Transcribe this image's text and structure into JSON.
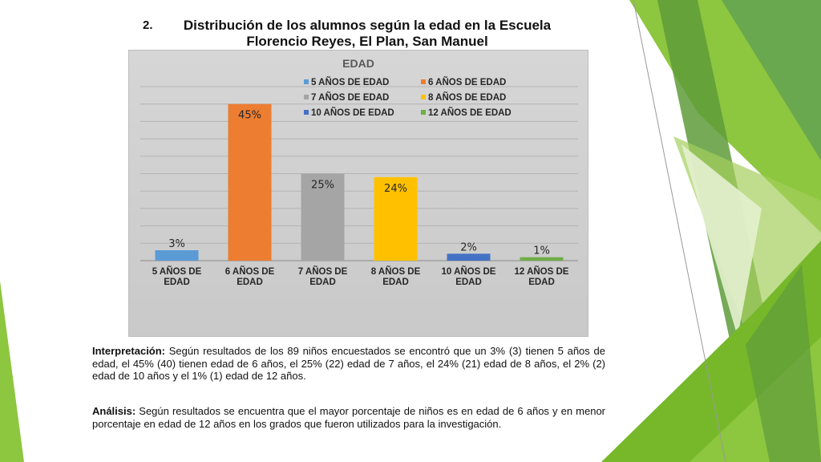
{
  "doc": {
    "number": "2.",
    "title_line1": "Distribución de los alumnos según la edad en la Escuela",
    "title_line2": "Florencio Reyes, El Plan, San Manuel"
  },
  "chart_data": {
    "type": "bar",
    "title": "EDAD",
    "categories": [
      "5 AÑOS DE EDAD",
      "6 AÑOS DE EDAD",
      "7 AÑOS DE EDAD",
      "8 AÑOS DE EDAD",
      "10 AÑOS DE EDAD",
      "12 AÑOS DE EDAD"
    ],
    "category_lines": [
      [
        "5 AÑOS DE",
        "EDAD"
      ],
      [
        "6 AÑOS DE",
        "EDAD"
      ],
      [
        "7 AÑOS DE",
        "EDAD"
      ],
      [
        "8 AÑOS DE",
        "EDAD"
      ],
      [
        "10 AÑOS DE",
        "EDAD"
      ],
      [
        "12 AÑOS DE",
        "EDAD"
      ]
    ],
    "values": [
      3,
      45,
      25,
      24,
      2,
      1
    ],
    "data_labels": [
      "3%",
      "45%",
      "25%",
      "24%",
      "2%",
      "1%"
    ],
    "colors": [
      "#5b9bd5",
      "#ed7d31",
      "#a5a5a5",
      "#ffc000",
      "#4472c4",
      "#70ad47"
    ],
    "legend": [
      "5 AÑOS DE EDAD",
      "6 AÑOS DE EDAD",
      "7 AÑOS DE EDAD",
      "8 AÑOS DE EDAD",
      "10 AÑOS DE EDAD",
      "12 AÑOS DE EDAD"
    ],
    "legend_position": "top",
    "ylim": [
      0,
      50
    ],
    "grid": true
  },
  "interpretacion": {
    "label": "Interpretación:",
    "text": " Según resultados de los 89 niños encuestados se encontró que un 3% (3) tienen 5 años de edad, el 45% (40) tienen edad de 6 años, el 25% (22) edad de 7 años, el 24% (21) edad de 8 años, el 2% (2) edad de 10 años y el 1% (1) edad de 12 años."
  },
  "analisis": {
    "label": "Análisis:",
    "text": " Según resultados se encuentra que el mayor porcentaje de niños es en edad de 6 años y en menor porcentaje en edad de 12 años en los grados que fueron utilizados para la investigación."
  }
}
